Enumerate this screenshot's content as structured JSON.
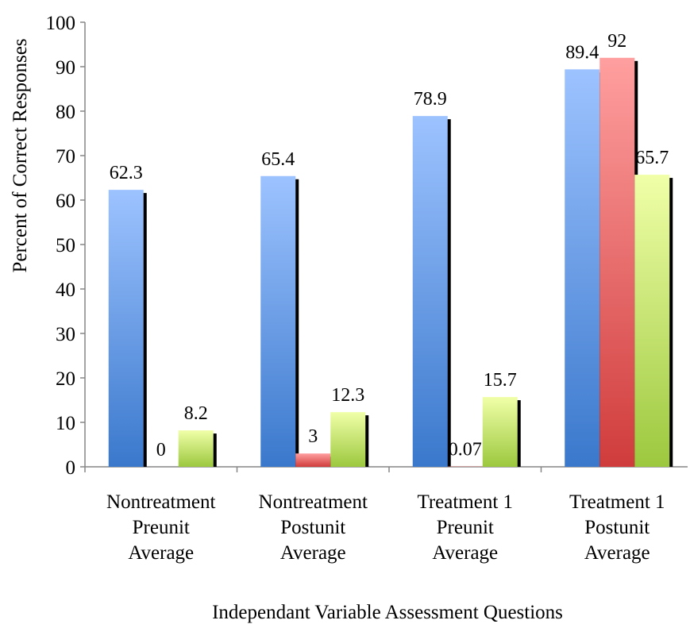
{
  "chart_data": {
    "type": "bar",
    "title": "",
    "xlabel": "Independant Variable Assessment Questions",
    "ylabel": "Percent of Correct Responses",
    "ylim": [
      0,
      100
    ],
    "yticks": [
      0,
      10,
      20,
      30,
      40,
      50,
      60,
      70,
      80,
      90,
      100
    ],
    "grid": false,
    "legend": "none",
    "categories": [
      [
        "Nontreatment",
        "Preunit",
        "Average"
      ],
      [
        "Nontreatment",
        "Postunit",
        "Average"
      ],
      [
        "Treatment 1",
        "Preunit",
        "Average"
      ],
      [
        "Treatment 1",
        "Postunit",
        "Average"
      ]
    ],
    "series": [
      {
        "color_top": "#9dc3ff",
        "color_bottom": "#3a78cc",
        "values": [
          62.3,
          65.4,
          78.9,
          89.4
        ],
        "labels": [
          "62.3",
          "65.4",
          "78.9",
          "89.4"
        ]
      },
      {
        "color_top": "#ff9f9f",
        "color_bottom": "#d03c3c",
        "values": [
          0,
          3,
          0.07,
          92
        ],
        "labels": [
          "0",
          "3",
          "0.07",
          "92"
        ]
      },
      {
        "color_top": "#f0ffa8",
        "color_bottom": "#9cc83e",
        "values": [
          8.2,
          12.3,
          15.7,
          65.7
        ],
        "labels": [
          "8.2",
          "12.3",
          "15.7",
          "65.7"
        ]
      }
    ]
  }
}
